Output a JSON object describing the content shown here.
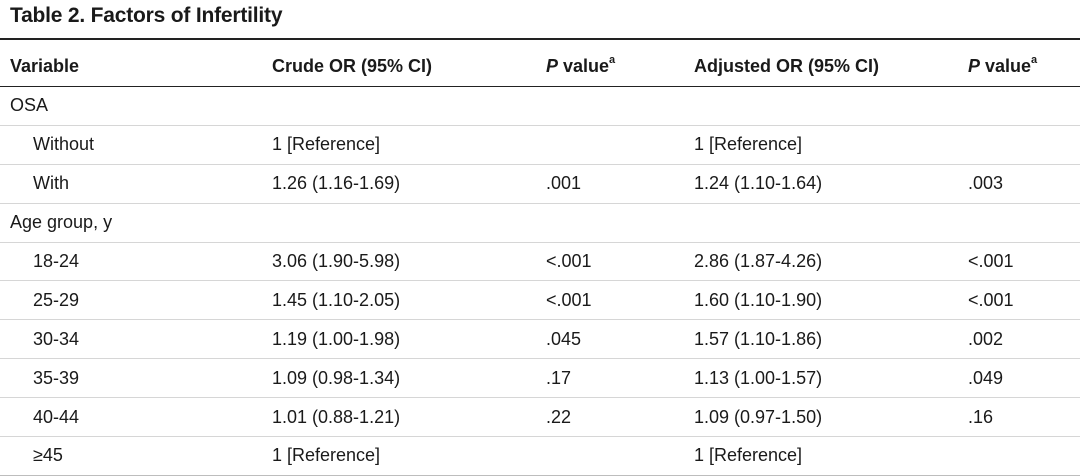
{
  "title": "Table 2. Factors of Infertility",
  "headers": {
    "variable": "Variable",
    "crude": "Crude OR (95% CI)",
    "p1_italic": "P",
    "p1_rest": " value",
    "p1_sup": "a",
    "adjusted": "Adjusted OR (95% CI)",
    "p2_italic": "P",
    "p2_rest": " value",
    "p2_sup": "a"
  },
  "sections": [
    {
      "label": "OSA",
      "rows": [
        {
          "variable": "Without",
          "crude": "1 [Reference]",
          "p1": "",
          "adjusted": "1 [Reference]",
          "p2": ""
        },
        {
          "variable": "With",
          "crude": "1.26 (1.16-1.69)",
          "p1": ".001",
          "adjusted": "1.24 (1.10-1.64)",
          "p2": ".003"
        }
      ]
    },
    {
      "label": "Age group, y",
      "rows": [
        {
          "variable": "18-24",
          "crude": "3.06 (1.90-5.98)",
          "p1": "<.001",
          "adjusted": "2.86 (1.87-4.26)",
          "p2": "<.001"
        },
        {
          "variable": "25-29",
          "crude": "1.45 (1.10-2.05)",
          "p1": "<.001",
          "adjusted": "1.60 (1.10-1.90)",
          "p2": "<.001"
        },
        {
          "variable": "30-34",
          "crude": "1.19 (1.00-1.98)",
          "p1": ".045",
          "adjusted": "1.57 (1.10-1.86)",
          "p2": ".002"
        },
        {
          "variable": "35-39",
          "crude": "1.09 (0.98-1.34)",
          "p1": ".17",
          "adjusted": "1.13 (1.00-1.57)",
          "p2": ".049"
        },
        {
          "variable": "40-44",
          "crude": "1.01 (0.88-1.21)",
          "p1": ".22",
          "adjusted": "1.09 (0.97-1.50)",
          "p2": ".16"
        },
        {
          "variable": "≥45",
          "crude": "1 [Reference]",
          "p1": "",
          "adjusted": "1 [Reference]",
          "p2": ""
        }
      ]
    }
  ]
}
